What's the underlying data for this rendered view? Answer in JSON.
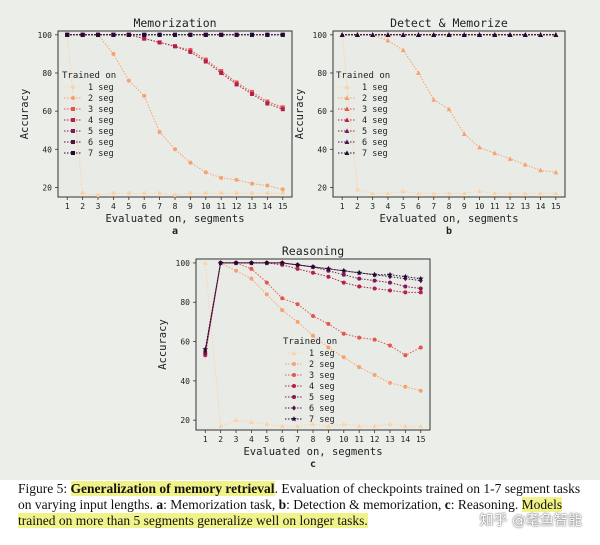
{
  "chart_data": [
    {
      "type": "line",
      "title": "Memorization",
      "panel_label": "a",
      "xlabel": "Evaluated on, segments",
      "ylabel": "Accuracy",
      "x": [
        1,
        2,
        3,
        4,
        5,
        6,
        7,
        8,
        9,
        10,
        11,
        12,
        13,
        14,
        15
      ],
      "yticks": [
        20,
        40,
        60,
        80,
        100
      ],
      "ylim": [
        15,
        102
      ],
      "legend_title": "Trained on",
      "legend_position": "center-left",
      "series": [
        {
          "name": "1 seg",
          "color": "#fbd3a8",
          "marker": "circle",
          "values": [
            100,
            17,
            16,
            17,
            17,
            17,
            17,
            16,
            17,
            17,
            17,
            17,
            17,
            17,
            17
          ]
        },
        {
          "name": "2 seg",
          "color": "#f7a16f",
          "marker": "circle",
          "values": [
            100,
            100,
            100,
            90,
            76,
            68,
            49,
            40,
            33,
            28,
            25,
            24,
            22,
            21,
            19
          ]
        },
        {
          "name": "3 seg",
          "color": "#e4554a",
          "marker": "square",
          "values": [
            100,
            100,
            100,
            100,
            100,
            98,
            96,
            94,
            92,
            87,
            81,
            75,
            70,
            65,
            62
          ]
        },
        {
          "name": "4 seg",
          "color": "#b51f4e",
          "marker": "square",
          "values": [
            100,
            100,
            100,
            100,
            100,
            98,
            96,
            94,
            91,
            86,
            80,
            74,
            69,
            64,
            61
          ]
        },
        {
          "name": "5 seg",
          "color": "#7f1a55",
          "marker": "square",
          "values": [
            100,
            100,
            100,
            100,
            100,
            100,
            100,
            100,
            100,
            100,
            100,
            100,
            100,
            100,
            100
          ]
        },
        {
          "name": "6 seg",
          "color": "#4d1047",
          "marker": "square",
          "values": [
            100,
            100,
            100,
            100,
            100,
            100,
            100,
            100,
            100,
            100,
            100,
            100,
            100,
            100,
            100
          ]
        },
        {
          "name": "7 seg",
          "color": "#230a30",
          "marker": "square",
          "values": [
            100,
            100,
            100,
            100,
            100,
            100,
            100,
            100,
            100,
            100,
            100,
            100,
            100,
            100,
            100
          ]
        }
      ]
    },
    {
      "type": "line",
      "title": "Detect & Memorize",
      "panel_label": "b",
      "xlabel": "Evaluated on, segments",
      "ylabel": "Accuracy",
      "x": [
        1,
        2,
        3,
        4,
        5,
        6,
        7,
        8,
        9,
        10,
        11,
        12,
        13,
        14,
        15
      ],
      "yticks": [
        20,
        40,
        60,
        80,
        100
      ],
      "ylim": [
        15,
        102
      ],
      "legend_title": "Trained on",
      "legend_position": "center-left",
      "series": [
        {
          "name": "1 seg",
          "color": "#fbd3a8",
          "marker": "triangle",
          "values": [
            100,
            19,
            17,
            17,
            18,
            17,
            17,
            17,
            17,
            18,
            17,
            17,
            17,
            17,
            17
          ]
        },
        {
          "name": "2 seg",
          "color": "#f7a16f",
          "marker": "triangle",
          "values": [
            100,
            100,
            100,
            97,
            92,
            80,
            66,
            61,
            48,
            41,
            38,
            35,
            32,
            29,
            28
          ]
        },
        {
          "name": "3 seg",
          "color": "#e4554a",
          "marker": "triangle",
          "values": [
            100,
            100,
            100,
            100,
            100,
            100,
            100,
            100,
            100,
            100,
            100,
            100,
            100,
            100,
            100
          ]
        },
        {
          "name": "4 seg",
          "color": "#b51f4e",
          "marker": "triangle",
          "values": [
            100,
            100,
            100,
            100,
            100,
            100,
            100,
            100,
            100,
            100,
            100,
            100,
            100,
            100,
            100
          ]
        },
        {
          "name": "5 seg",
          "color": "#7f1a55",
          "marker": "triangle",
          "values": [
            100,
            100,
            100,
            100,
            100,
            100,
            100,
            100,
            100,
            100,
            100,
            100,
            100,
            100,
            100
          ]
        },
        {
          "name": "6 seg",
          "color": "#4d1047",
          "marker": "triangle",
          "values": [
            100,
            100,
            100,
            100,
            100,
            100,
            100,
            100,
            100,
            100,
            100,
            100,
            100,
            100,
            100
          ]
        },
        {
          "name": "7 seg",
          "color": "#230a30",
          "marker": "triangle",
          "values": [
            100,
            100,
            100,
            100,
            100,
            100,
            100,
            100,
            100,
            100,
            100,
            100,
            100,
            100,
            100
          ]
        }
      ]
    },
    {
      "type": "line",
      "title": "Reasoning",
      "panel_label": "c",
      "xlabel": "Evaluated on, segments",
      "ylabel": "Accuracy",
      "x": [
        1,
        2,
        3,
        4,
        5,
        6,
        7,
        8,
        9,
        10,
        11,
        12,
        13,
        14,
        15
      ],
      "yticks": [
        20,
        40,
        60,
        80,
        100
      ],
      "ylim": [
        15,
        102
      ],
      "legend_title": "Trained on",
      "legend_position": "center-left",
      "series": [
        {
          "name": "1 seg",
          "color": "#fbd3a8",
          "marker": "triangle",
          "values": [
            100,
            17,
            20,
            19,
            18,
            17,
            17,
            18,
            17,
            18,
            17,
            17,
            18,
            17,
            17
          ]
        },
        {
          "name": "2 seg",
          "color": "#f7a16f",
          "marker": "circle",
          "values": [
            55,
            100,
            96,
            92,
            84,
            76,
            70,
            63,
            57,
            52,
            47,
            43,
            39,
            37,
            35
          ]
        },
        {
          "name": "3 seg",
          "color": "#e4554a",
          "marker": "circle",
          "values": [
            54,
            100,
            100,
            97,
            90,
            82,
            79,
            73,
            69,
            64,
            62,
            61,
            58,
            53,
            57
          ]
        },
        {
          "name": "4 seg",
          "color": "#b51f4e",
          "marker": "circle",
          "values": [
            53,
            100,
            100,
            100,
            100,
            99,
            97,
            95,
            93,
            90,
            88,
            87,
            86,
            85,
            85
          ]
        },
        {
          "name": "5 seg",
          "color": "#7f1a55",
          "marker": "circle",
          "values": [
            54,
            100,
            100,
            100,
            100,
            100,
            99,
            98,
            96,
            94,
            92,
            91,
            90,
            88,
            87
          ]
        },
        {
          "name": "6 seg",
          "color": "#4d1047",
          "marker": "diamond",
          "values": [
            55,
            100,
            100,
            100,
            100,
            100,
            99,
            98,
            97,
            96,
            95,
            94,
            93,
            92,
            91
          ]
        },
        {
          "name": "7 seg",
          "color": "#230a30",
          "marker": "star",
          "values": [
            56,
            100,
            100,
            100,
            100,
            100,
            99,
            98,
            97,
            96,
            95,
            94,
            94,
            93,
            92
          ]
        }
      ]
    }
  ],
  "caption": {
    "prefix": "Figure 5: ",
    "bold_highlight": "Generalization of memory retrieval",
    "after_bold": ". Evaluation of checkpoints trained on 1-7 segment tasks on varying input lengths. ",
    "label_a": "a",
    "text_a": ": Memorization task, ",
    "label_b": "b",
    "text_b": ": Detection & memorization, ",
    "label_c": "c",
    "text_c": ": Reasoning. ",
    "highlight_end": "Models trained on more than 5 segments generalize well on longer tasks."
  },
  "watermark": "知乎 @耄鱼智能"
}
